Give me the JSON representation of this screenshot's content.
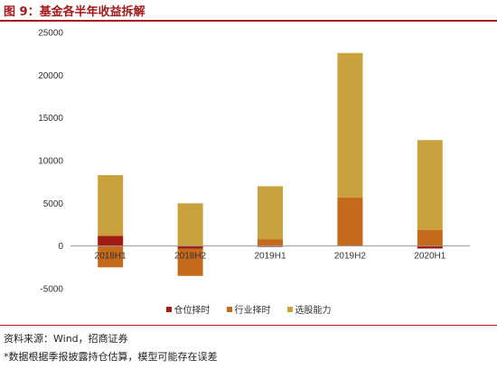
{
  "figure": {
    "title": "图 9：基金各半年收益拆解",
    "source": "资料来源：Wind，招商证券",
    "note": "*数据根据季报披露持仓估算，模型可能存在误差"
  },
  "colors": {
    "title": "#a3191c",
    "timing": "#a31b15",
    "industry": "#c46a1a",
    "selection": "#c9a23e"
  },
  "chart_data": {
    "type": "bar",
    "stacked": true,
    "categories": [
      "2018H1",
      "2018H2",
      "2019H1",
      "2019H2",
      "2020H1"
    ],
    "series": [
      {
        "name": "仓位择时",
        "color": "#a31b15",
        "values": [
          1200,
          -300,
          -100,
          0,
          -300
        ]
      },
      {
        "name": "行业择时",
        "color": "#c46a1a",
        "values": [
          -2500,
          -3200,
          800,
          5700,
          1900
        ]
      },
      {
        "name": "选股能力",
        "color": "#c9a23e",
        "values": [
          7100,
          5000,
          6200,
          16900,
          10500
        ]
      }
    ],
    "yticks": [
      -5000,
      0,
      5000,
      10000,
      15000,
      20000,
      25000
    ],
    "ylim": [
      -5000,
      25000
    ],
    "grid": false,
    "legend_position": "bottom"
  }
}
